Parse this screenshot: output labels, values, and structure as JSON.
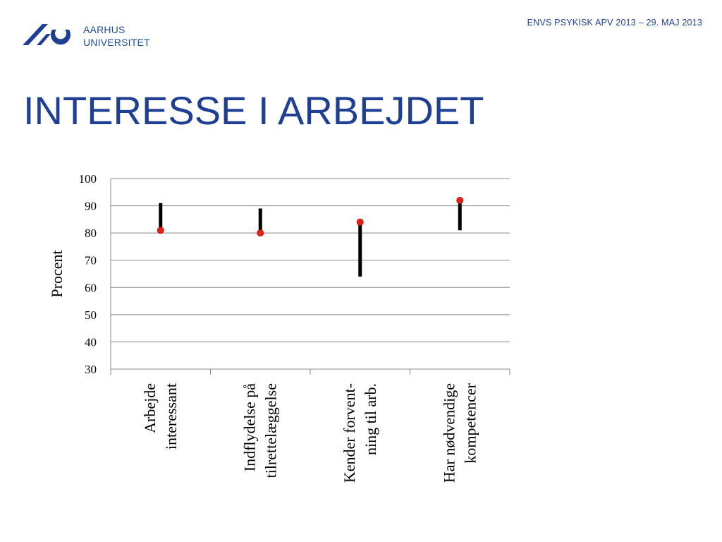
{
  "header": {
    "logo_line1": "AARHUS",
    "logo_line2": "UNIVERSITET",
    "right_text": "ENVS PSYKISK APV 2013 – 29. MAJ 2013"
  },
  "slide": {
    "title": "INTERESSE I ARBEJDET"
  },
  "colors": {
    "brand_blue": "#1f3f93",
    "point_red": "#e2231a",
    "range_black": "#000000"
  },
  "chart_data": {
    "type": "scatter",
    "title": "",
    "ylabel": "Procent",
    "xlabel": "",
    "ylim": [
      30,
      100
    ],
    "yticks": [
      30,
      40,
      50,
      60,
      70,
      80,
      90,
      100
    ],
    "grid": true,
    "categories": [
      [
        "Arbejde",
        "interessant"
      ],
      [
        "Indflydelse på",
        "tilrettelæggelse"
      ],
      [
        "Kender forvent-",
        "ning til arb."
      ],
      [
        "Har nødvendige",
        "kompetencer"
      ]
    ],
    "series": [
      {
        "values": [
          81,
          80,
          84,
          92
        ]
      }
    ],
    "ranges": [
      [
        82,
        91
      ],
      [
        81,
        89
      ],
      [
        64,
        83
      ],
      [
        81,
        91
      ]
    ]
  }
}
